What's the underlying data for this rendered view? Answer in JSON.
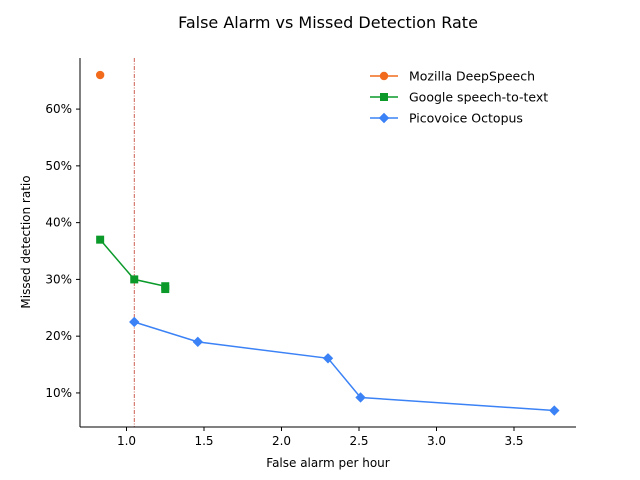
{
  "chart_data": {
    "type": "line",
    "title": "False Alarm vs Missed Detection Rate",
    "xlabel": "False alarm per hour",
    "ylabel": "Missed detection ratio",
    "xlim": [
      0.7,
      3.9
    ],
    "ylim": [
      0.04,
      0.69
    ],
    "xticks": [
      1.0,
      1.5,
      2.0,
      2.5,
      3.0,
      3.5
    ],
    "xtick_labels": [
      "1.0",
      "1.5",
      "2.0",
      "2.5",
      "3.0",
      "3.5"
    ],
    "yticks": [
      0.1,
      0.2,
      0.3,
      0.4,
      0.5,
      0.6
    ],
    "ytick_labels": [
      "10%",
      "20%",
      "30%",
      "40%",
      "50%",
      "60%"
    ],
    "grid": false,
    "legend_position": "top-right",
    "reference_line": {
      "orientation": "vertical",
      "x": 1.05,
      "color": "#c0392b",
      "style": "dashdot"
    },
    "series": [
      {
        "name": "Mozilla DeepSpeech",
        "color": "#f26b1d",
        "marker": "circle",
        "points": [
          {
            "x": 0.83,
            "y": 0.66
          }
        ]
      },
      {
        "name": "Google speech-to-text",
        "color": "#0b9a2a",
        "marker": "square",
        "points": [
          {
            "x": 0.83,
            "y": 0.37
          },
          {
            "x": 1.05,
            "y": 0.3
          },
          {
            "x": 1.25,
            "y": 0.288
          },
          {
            "x": 1.25,
            "y": 0.283
          }
        ]
      },
      {
        "name": "Picovoice Octopus",
        "color": "#3b82f6",
        "marker": "diamond",
        "points": [
          {
            "x": 1.05,
            "y": 0.225
          },
          {
            "x": 1.46,
            "y": 0.19
          },
          {
            "x": 2.3,
            "y": 0.161
          },
          {
            "x": 2.51,
            "y": 0.092
          },
          {
            "x": 3.76,
            "y": 0.069
          }
        ]
      }
    ]
  }
}
